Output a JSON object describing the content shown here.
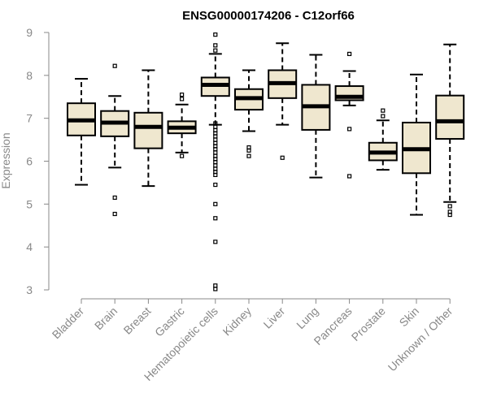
{
  "chart_data": {
    "type": "boxplot",
    "title": "ENSG00000174206 - C12orf66",
    "xlabel": "",
    "ylabel": "Expression",
    "ylim": [
      3,
      9
    ],
    "yticks": [
      3,
      4,
      5,
      6,
      7,
      8,
      9
    ],
    "box_fill": "#efe7cf",
    "categories": [
      "Bladder",
      "Brain",
      "Breast",
      "Gastric",
      "Hematopoietic cells",
      "Kidney",
      "Liver",
      "Lung",
      "Pancreas",
      "Prostate",
      "Skin",
      "Unknown / Other"
    ],
    "series": [
      {
        "name": "Bladder",
        "whisker_low": 5.45,
        "q1": 6.6,
        "median": 6.95,
        "q3": 7.35,
        "whisker_high": 7.92,
        "outliers": []
      },
      {
        "name": "Brain",
        "whisker_low": 5.85,
        "q1": 6.58,
        "median": 6.9,
        "q3": 7.17,
        "whisker_high": 7.52,
        "outliers": [
          8.22,
          5.15,
          4.77
        ]
      },
      {
        "name": "Breast",
        "whisker_low": 5.42,
        "q1": 6.3,
        "median": 6.8,
        "q3": 7.13,
        "whisker_high": 8.12,
        "outliers": []
      },
      {
        "name": "Gastric",
        "whisker_low": 6.2,
        "q1": 6.65,
        "median": 6.78,
        "q3": 6.93,
        "whisker_high": 7.32,
        "outliers": [
          7.55,
          7.45,
          6.12
        ]
      },
      {
        "name": "Hematopoietic cells",
        "whisker_low": 6.85,
        "q1": 7.52,
        "median": 7.78,
        "q3": 7.95,
        "whisker_high": 8.5,
        "outliers": [
          8.95,
          8.7,
          8.58,
          6.88,
          6.8,
          6.72,
          6.65,
          6.58,
          6.5,
          6.42,
          6.35,
          6.28,
          6.2,
          6.12,
          6.05,
          5.98,
          5.9,
          5.82,
          5.75,
          5.68,
          5.45,
          5.0,
          4.67,
          4.12,
          3.1,
          3.02
        ]
      },
      {
        "name": "Kidney",
        "whisker_low": 6.7,
        "q1": 7.2,
        "median": 7.47,
        "q3": 7.68,
        "whisker_high": 8.12,
        "outliers": [
          6.32,
          6.25,
          6.12
        ]
      },
      {
        "name": "Liver",
        "whisker_low": 6.85,
        "q1": 7.47,
        "median": 7.82,
        "q3": 8.12,
        "whisker_high": 8.75,
        "outliers": [
          6.08
        ]
      },
      {
        "name": "Lung",
        "whisker_low": 5.62,
        "q1": 6.73,
        "median": 7.28,
        "q3": 7.78,
        "whisker_high": 8.48,
        "outliers": []
      },
      {
        "name": "Pancreas",
        "whisker_low": 7.3,
        "q1": 7.42,
        "median": 7.5,
        "q3": 7.75,
        "whisker_high": 8.1,
        "outliers": [
          8.5,
          6.75,
          5.65
        ]
      },
      {
        "name": "Prostate",
        "whisker_low": 5.8,
        "q1": 6.02,
        "median": 6.2,
        "q3": 6.43,
        "whisker_high": 6.95,
        "outliers": [
          7.18,
          7.05
        ]
      },
      {
        "name": "Skin",
        "whisker_low": 4.75,
        "q1": 5.72,
        "median": 6.28,
        "q3": 6.9,
        "whisker_high": 8.02,
        "outliers": []
      },
      {
        "name": "Unknown / Other",
        "whisker_low": 5.05,
        "q1": 6.52,
        "median": 6.93,
        "q3": 7.53,
        "whisker_high": 8.72,
        "outliers": [
          4.95,
          4.82,
          4.75
        ]
      }
    ]
  }
}
